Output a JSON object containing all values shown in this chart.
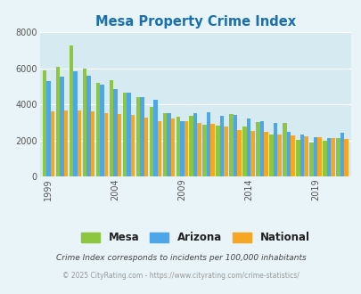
{
  "title": "Mesa Property Crime Index",
  "title_color": "#1a6faf",
  "years": [
    1999,
    2000,
    2001,
    2002,
    2003,
    2004,
    2005,
    2006,
    2007,
    2008,
    2009,
    2010,
    2011,
    2012,
    2013,
    2014,
    2015,
    2016,
    2017,
    2018,
    2019,
    2020,
    2021
  ],
  "mesa": [
    5900,
    6100,
    7250,
    6000,
    5200,
    5350,
    4650,
    4400,
    3850,
    3500,
    3300,
    3350,
    2850,
    2800,
    3450,
    2750,
    3000,
    2350,
    2950,
    2050,
    1900,
    2000,
    2150
  ],
  "arizona": [
    5300,
    5550,
    5850,
    5600,
    5100,
    4850,
    4650,
    4400,
    4250,
    3500,
    3050,
    3500,
    3550,
    3350,
    3400,
    3200,
    3050,
    2950,
    2450,
    2350,
    2200,
    2150,
    2400
  ],
  "national": [
    3600,
    3650,
    3650,
    3600,
    3500,
    3450,
    3400,
    3250,
    3050,
    3200,
    3050,
    2950,
    2900,
    2750,
    2550,
    2500,
    2450,
    2350,
    2300,
    2250,
    2200,
    2150,
    2100
  ],
  "mesa_color": "#8dc63f",
  "arizona_color": "#4da6e8",
  "national_color": "#f5a623",
  "bg_color": "#e8f4f8",
  "plot_bg": "#d6eaf2",
  "ylabel_ticks": [
    0,
    2000,
    4000,
    6000,
    8000
  ],
  "xtick_labels": [
    "1999",
    "2004",
    "2009",
    "2014",
    "2019"
  ],
  "xtick_positions": [
    0,
    5,
    10,
    15,
    20
  ],
  "subtitle": "Crime Index corresponds to incidents per 100,000 inhabitants",
  "footer": "© 2025 CityRating.com - https://www.cityrating.com/crime-statistics/",
  "subtitle_color": "#444444",
  "footer_color": "#999999"
}
